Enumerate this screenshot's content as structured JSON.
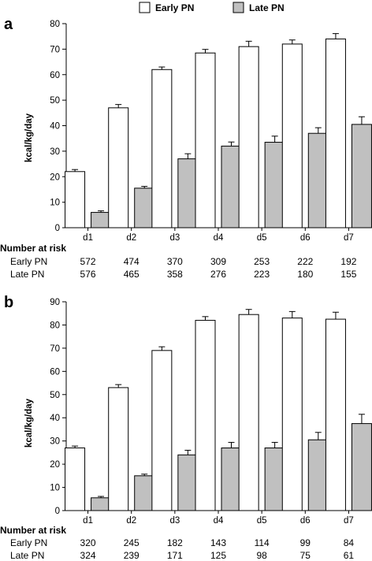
{
  "legend": [
    {
      "label": "Early PN",
      "color": "#ffffff"
    },
    {
      "label": "Late PN",
      "color": "#c0c0c0"
    }
  ],
  "chart_data": [
    {
      "panel": "a",
      "type": "bar",
      "ylabel": "kcal/kg/day",
      "ylim": [
        0,
        80
      ],
      "yticks": [
        0,
        10,
        20,
        30,
        40,
        50,
        60,
        70,
        80
      ],
      "categories": [
        "d1",
        "d2",
        "d3",
        "d4",
        "d5",
        "d6",
        "d7"
      ],
      "series": [
        {
          "name": "Early PN",
          "color": "#ffffff",
          "values": [
            22,
            47,
            62,
            68.5,
            71,
            72,
            74
          ],
          "errors": [
            0.8,
            1.3,
            1.0,
            1.4,
            2.1,
            1.6,
            2.1
          ]
        },
        {
          "name": "Late PN",
          "color": "#c0c0c0",
          "values": [
            6,
            15.5,
            27,
            32,
            33.5,
            37,
            40.5
          ],
          "errors": [
            0.6,
            0.7,
            2.0,
            1.6,
            2.4,
            2.2,
            3.0
          ]
        }
      ],
      "number_at_risk": {
        "title": "Number at risk",
        "rows": [
          {
            "label": "Early PN",
            "values": [
              "572",
              "474",
              "370",
              "309",
              "253",
              "222",
              "192"
            ]
          },
          {
            "label": "Late PN",
            "values": [
              "576",
              "465",
              "358",
              "276",
              "223",
              "180",
              "155"
            ]
          }
        ]
      }
    },
    {
      "panel": "b",
      "type": "bar",
      "ylabel": "kcal/kg/day",
      "ylim": [
        0,
        90
      ],
      "yticks": [
        0,
        10,
        20,
        30,
        40,
        50,
        60,
        70,
        80,
        90
      ],
      "categories": [
        "d1",
        "d2",
        "d3",
        "d4",
        "d5",
        "d6",
        "d7"
      ],
      "series": [
        {
          "name": "Early PN",
          "color": "#ffffff",
          "values": [
            27,
            53,
            69,
            82,
            84.5,
            83,
            82.5
          ],
          "errors": [
            0.8,
            1.3,
            1.6,
            1.6,
            2.2,
            2.8,
            3.0
          ]
        },
        {
          "name": "Late PN",
          "color": "#c0c0c0",
          "values": [
            5.5,
            15,
            24,
            27,
            27,
            30.5,
            37.5
          ],
          "errors": [
            0.6,
            0.7,
            2.0,
            2.4,
            2.4,
            3.2,
            4.0
          ]
        }
      ],
      "number_at_risk": {
        "title": "Number at risk",
        "rows": [
          {
            "label": "Early PN",
            "values": [
              "320",
              "245",
              "182",
              "143",
              "114",
              "99",
              "84"
            ]
          },
          {
            "label": "Late PN",
            "values": [
              "324",
              "239",
              "171",
              "125",
              "98",
              "75",
              "61"
            ]
          }
        ]
      }
    }
  ]
}
